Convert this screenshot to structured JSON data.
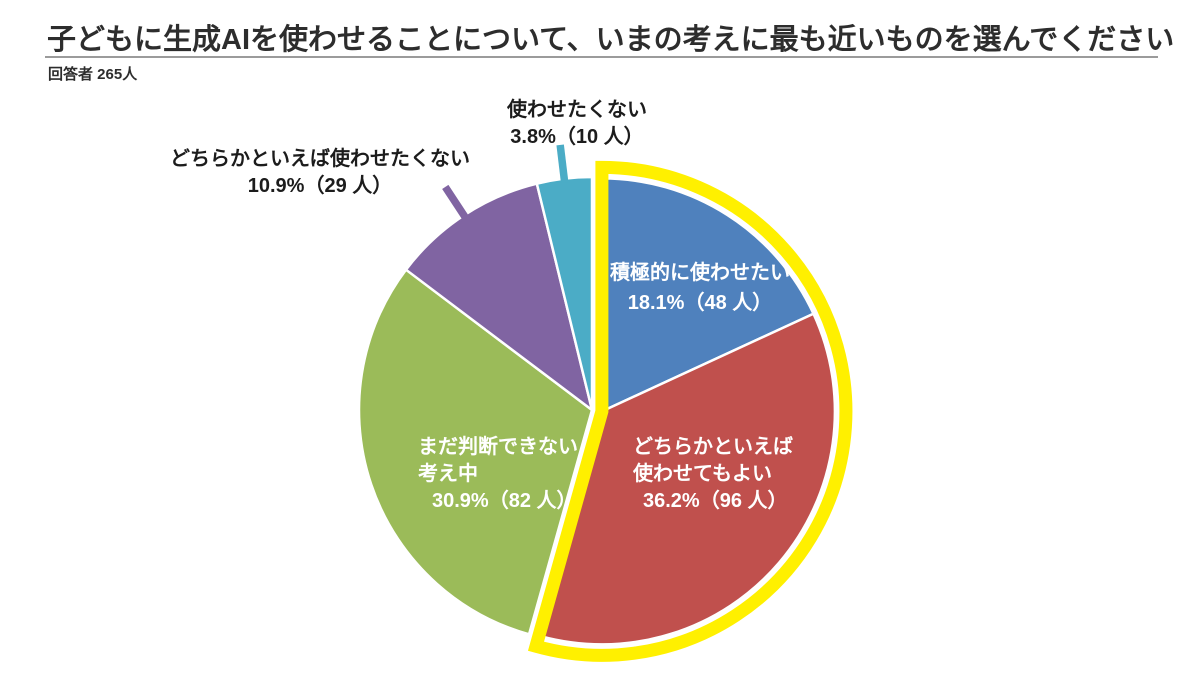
{
  "header": {
    "title": "子どもに生成AIを使わせることについて、いまの考えに最も近いものを選んでください",
    "respondents": "回答者 265人"
  },
  "chart_data": {
    "type": "pie",
    "title": "子どもに生成AIを使わせることについて、いまの考えに最も近いものを選んでください",
    "subtitle": "回答者 265人",
    "total_respondents": 265,
    "start_angle_deg": 0,
    "direction": "clockwise",
    "highlight": {
      "color": "#FFF000",
      "applies_to": [
        "積極的に使わせたい",
        "どちらかといえば使わせてもよい"
      ]
    },
    "segments": [
      {
        "label": "積極的に使わせたい",
        "pct": 18.1,
        "count": 48,
        "color": "#4F81BD",
        "highlighted": true,
        "label_placement": "inside",
        "label_lines": [
          "積極的に使わせたい"
        ],
        "value_line": "18.1%（48 人）"
      },
      {
        "label": "どちらかといえば使わせてもよい",
        "pct": 36.2,
        "count": 96,
        "color": "#C0504D",
        "highlighted": true,
        "label_placement": "inside",
        "label_lines": [
          "どちらかといえば",
          "使わせてもよい"
        ],
        "value_line": "36.2%（96 人）"
      },
      {
        "label": "まだ判断できない考え中",
        "pct": 30.9,
        "count": 82,
        "color": "#9BBB59",
        "highlighted": false,
        "label_placement": "inside",
        "label_lines": [
          "まだ判断できない",
          "考え中"
        ],
        "value_line": "30.9%（82 人）"
      },
      {
        "label": "どちらかといえば使わせたくない",
        "pct": 10.9,
        "count": 29,
        "color": "#8064A2",
        "highlighted": false,
        "label_placement": "outside",
        "label_lines": [
          "どちらかといえば使わせたくない"
        ],
        "value_line": "10.9%（29 人）"
      },
      {
        "label": "使わせたくない",
        "pct": 3.8,
        "count": 10,
        "color": "#4BACC6",
        "highlighted": false,
        "label_placement": "outside",
        "label_lines": [
          "使わせたくない"
        ],
        "value_line": "3.8%（10 人）"
      }
    ]
  }
}
